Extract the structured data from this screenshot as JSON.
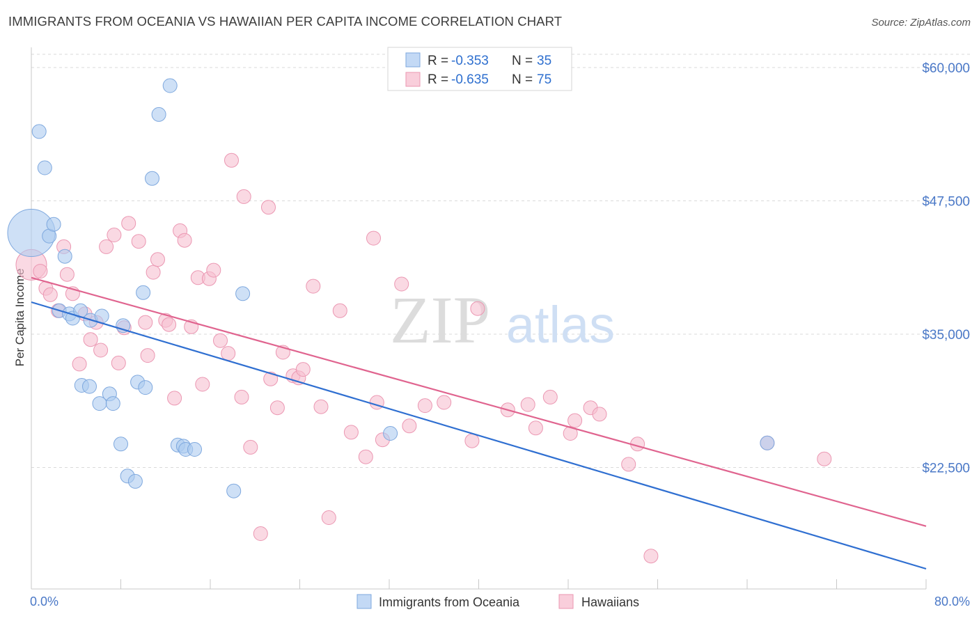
{
  "title": "IMMIGRANTS FROM OCEANIA VS HAWAIIAN PER CAPITA INCOME CORRELATION CHART",
  "source": "Source: ZipAtlas.com",
  "watermark": {
    "zip": "ZIP",
    "atlas": "atlas"
  },
  "colors": {
    "blue_fill": "#aecbf0",
    "blue_stroke": "#7ea8de",
    "blue_line": "#2f6fd1",
    "pink_fill": "#f6bfd0",
    "pink_stroke": "#eb97b2",
    "pink_line": "#e0648f",
    "grid": "#d9d9d9",
    "label": "#4a78c7"
  },
  "legend": {
    "rows": [
      {
        "r_label": "R =",
        "r_value": "-0.353",
        "n_label": "N =",
        "n_value": "35"
      },
      {
        "r_label": "R =",
        "r_value": "-0.635",
        "n_label": "N =",
        "n_value": "75"
      }
    ]
  },
  "chart_data": {
    "type": "scatter",
    "xlabel": "",
    "ylabel": "Per Capita Income",
    "xlim": [
      0,
      80
    ],
    "ylim": [
      11000,
      62000
    ],
    "x_tick_labels": [
      "0.0%",
      "80.0%"
    ],
    "y_ticks": [
      22500,
      35000,
      47500,
      60000
    ],
    "y_tick_labels": [
      "$22,500",
      "$35,000",
      "$47,500",
      "$60,000"
    ],
    "series": [
      {
        "name": "Immigrants from Oceania",
        "color": "blue",
        "trend": {
          "x": [
            0,
            80
          ],
          "y": [
            38000,
            13000
          ]
        },
        "points": [
          [
            0.0,
            44500,
            34
          ],
          [
            0.7,
            54000,
            10
          ],
          [
            1.2,
            50600,
            10
          ],
          [
            1.6,
            44200,
            10
          ],
          [
            2.0,
            45300,
            10
          ],
          [
            3.0,
            42300,
            10
          ],
          [
            2.5,
            37200,
            10
          ],
          [
            3.4,
            36900,
            10
          ],
          [
            3.7,
            36500,
            10
          ],
          [
            4.4,
            37200,
            10
          ],
          [
            5.3,
            36300,
            10
          ],
          [
            6.3,
            36700,
            10
          ],
          [
            8.2,
            35800,
            10
          ],
          [
            4.5,
            30200,
            10
          ],
          [
            5.2,
            30100,
            10
          ],
          [
            6.1,
            28500,
            10
          ],
          [
            7.0,
            29400,
            10
          ],
          [
            7.3,
            28500,
            10
          ],
          [
            8.0,
            24700,
            10
          ],
          [
            8.6,
            21700,
            10
          ],
          [
            9.3,
            21200,
            10
          ],
          [
            9.5,
            30500,
            10
          ],
          [
            10.2,
            30000,
            10
          ],
          [
            10.0,
            38900,
            10
          ],
          [
            10.8,
            49600,
            10
          ],
          [
            11.4,
            55600,
            10
          ],
          [
            12.4,
            58300,
            10
          ],
          [
            13.1,
            24600,
            10
          ],
          [
            13.6,
            24500,
            10
          ],
          [
            13.8,
            24200,
            10
          ],
          [
            14.6,
            24200,
            10
          ],
          [
            18.1,
            20300,
            10
          ],
          [
            18.9,
            38800,
            10
          ],
          [
            32.1,
            25700,
            10
          ],
          [
            65.8,
            24800,
            10
          ]
        ]
      },
      {
        "name": "Hawaiians",
        "color": "pink",
        "trend": {
          "x": [
            0,
            80
          ],
          "y": [
            40300,
            17000
          ]
        },
        "points": [
          [
            0.0,
            41500,
            22
          ],
          [
            0.8,
            40900,
            10
          ],
          [
            1.3,
            39300,
            10
          ],
          [
            1.7,
            38700,
            10
          ],
          [
            2.4,
            37200,
            10
          ],
          [
            2.9,
            43200,
            10
          ],
          [
            3.2,
            40600,
            10
          ],
          [
            3.7,
            38800,
            10
          ],
          [
            4.3,
            32200,
            10
          ],
          [
            4.8,
            36900,
            10
          ],
          [
            5.3,
            34500,
            10
          ],
          [
            5.8,
            36100,
            10
          ],
          [
            6.2,
            33500,
            10
          ],
          [
            6.7,
            43200,
            10
          ],
          [
            7.4,
            44300,
            10
          ],
          [
            7.8,
            32300,
            10
          ],
          [
            8.3,
            35600,
            10
          ],
          [
            8.7,
            45400,
            10
          ],
          [
            9.6,
            43700,
            10
          ],
          [
            10.2,
            36100,
            10
          ],
          [
            10.4,
            33000,
            10
          ],
          [
            10.9,
            40800,
            10
          ],
          [
            11.3,
            42000,
            10
          ],
          [
            12.0,
            36300,
            10
          ],
          [
            12.3,
            35900,
            10
          ],
          [
            12.8,
            29000,
            10
          ],
          [
            13.3,
            44700,
            10
          ],
          [
            13.7,
            43800,
            10
          ],
          [
            14.3,
            35700,
            10
          ],
          [
            14.9,
            40300,
            10
          ],
          [
            15.3,
            30300,
            10
          ],
          [
            15.9,
            40200,
            10
          ],
          [
            16.3,
            41000,
            10
          ],
          [
            16.9,
            34400,
            10
          ],
          [
            17.6,
            33200,
            10
          ],
          [
            17.9,
            51300,
            10
          ],
          [
            18.8,
            29100,
            10
          ],
          [
            19.0,
            47900,
            10
          ],
          [
            19.6,
            24400,
            10
          ],
          [
            20.5,
            16300,
            10
          ],
          [
            21.2,
            46900,
            10
          ],
          [
            21.4,
            30800,
            10
          ],
          [
            22.0,
            28100,
            10
          ],
          [
            22.5,
            33300,
            10
          ],
          [
            23.4,
            31100,
            10
          ],
          [
            23.9,
            30900,
            10
          ],
          [
            24.3,
            31700,
            10
          ],
          [
            25.2,
            39500,
            10
          ],
          [
            25.9,
            28200,
            10
          ],
          [
            26.6,
            17800,
            10
          ],
          [
            27.6,
            37200,
            10
          ],
          [
            28.6,
            25800,
            10
          ],
          [
            29.9,
            23500,
            10
          ],
          [
            30.6,
            44000,
            10
          ],
          [
            30.9,
            28600,
            10
          ],
          [
            31.4,
            25100,
            10
          ],
          [
            33.1,
            39700,
            10
          ],
          [
            33.8,
            26400,
            10
          ],
          [
            35.2,
            28300,
            10
          ],
          [
            36.9,
            28600,
            10
          ],
          [
            39.4,
            25000,
            10
          ],
          [
            39.9,
            37400,
            10
          ],
          [
            42.6,
            27900,
            10
          ],
          [
            44.4,
            28400,
            10
          ],
          [
            45.1,
            26200,
            10
          ],
          [
            46.4,
            29100,
            10
          ],
          [
            48.2,
            25700,
            10
          ],
          [
            48.6,
            26900,
            10
          ],
          [
            50.0,
            28100,
            10
          ],
          [
            50.8,
            27500,
            10
          ],
          [
            53.4,
            22800,
            10
          ],
          [
            54.2,
            24700,
            10
          ],
          [
            55.4,
            14200,
            10
          ],
          [
            65.8,
            24800,
            10
          ],
          [
            70.9,
            23300,
            10
          ]
        ]
      }
    ]
  }
}
